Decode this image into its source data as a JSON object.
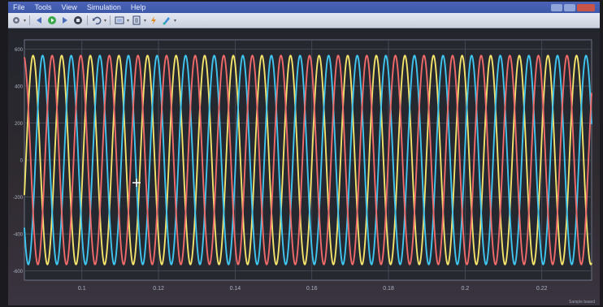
{
  "menu": [
    "File",
    "Tools",
    "View",
    "Simulation",
    "Help"
  ],
  "toolbar": {
    "icons": [
      "settings-icon",
      "back-icon",
      "run-icon",
      "step-forward-icon",
      "stop-icon",
      "undo-icon",
      "zoom-icon",
      "autoscale-icon",
      "highlight-icon",
      "style-icon"
    ]
  },
  "status": "Sample based",
  "chart_data": {
    "type": "line",
    "title": "",
    "xlabel": "",
    "ylabel": "",
    "xlim": [
      0.085,
      0.233
    ],
    "ylim": [
      -650,
      650
    ],
    "grid": true,
    "x_ticks": [
      0.1,
      0.12,
      0.14,
      0.16,
      0.18,
      0.2,
      0.22
    ],
    "x_tick_labels": [
      "0.1",
      "0.12",
      "0.14",
      "0.16",
      "0.18",
      "0.2",
      "0.22"
    ],
    "y_ticks": [
      -600,
      -400,
      -200,
      0,
      200,
      400,
      600
    ],
    "y_tick_labels": [
      "-600",
      "-400",
      "-200",
      "0",
      "200",
      "400",
      "600"
    ],
    "series": [
      {
        "color": "#f3e36a",
        "amplitude": 565,
        "frequency_hz": 134,
        "phase_deg": 200
      },
      {
        "color": "#3fc6f0",
        "amplitude": 565,
        "frequency_hz": 134,
        "phase_deg": 80
      },
      {
        "color": "#f06a6a",
        "amplitude": 565,
        "frequency_hz": 134,
        "phase_deg": 320
      }
    ]
  }
}
